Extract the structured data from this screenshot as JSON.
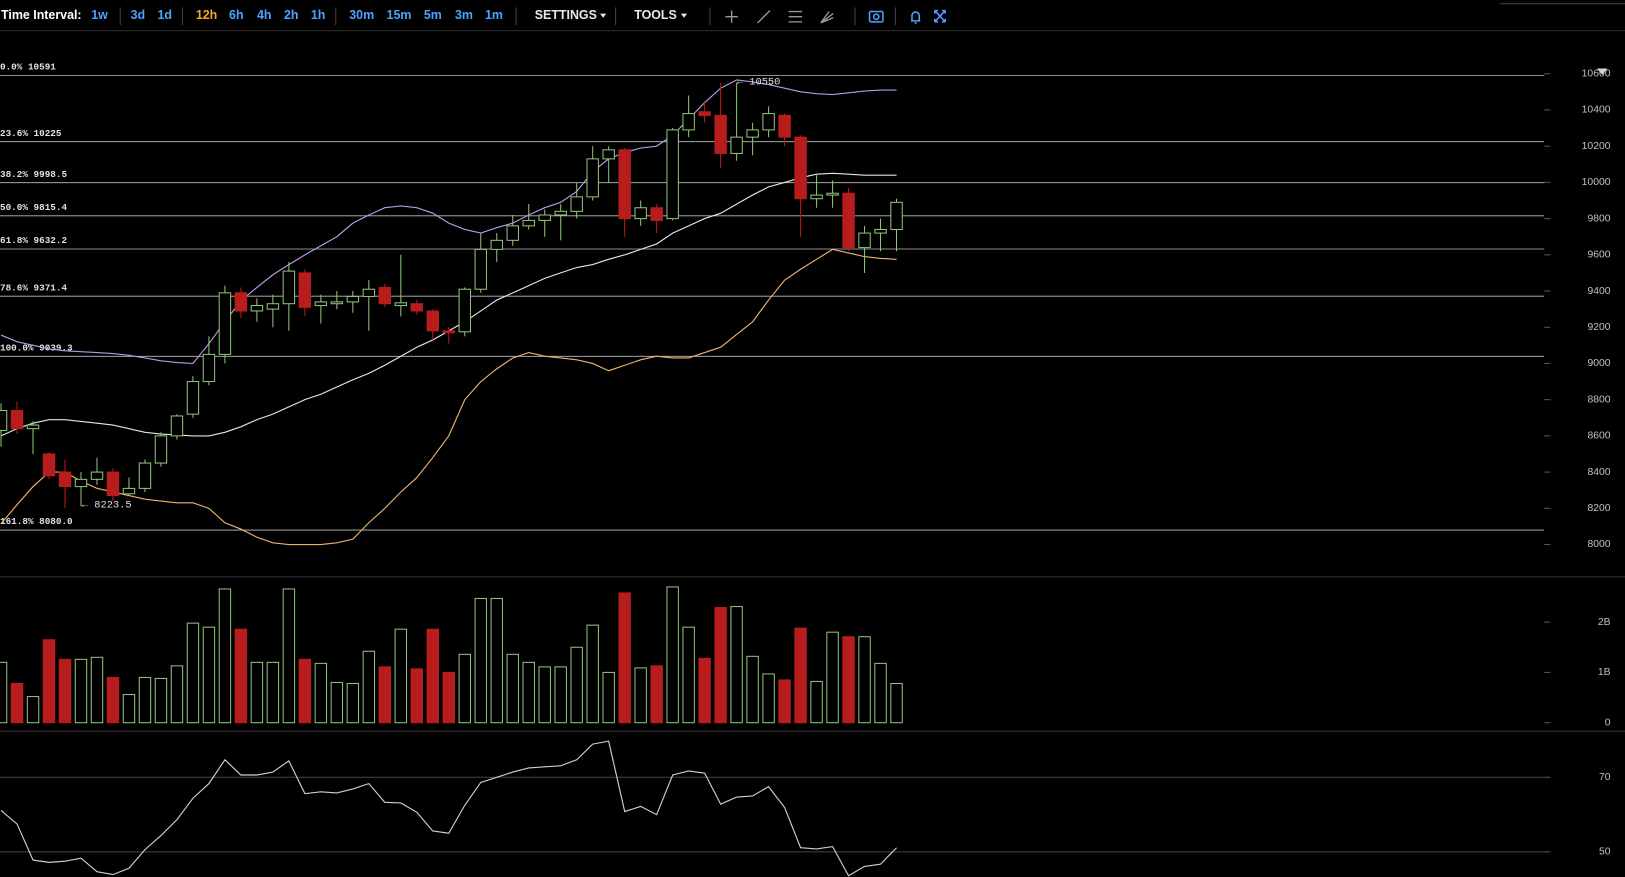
{
  "toolbar": {
    "label": "Time Interval:",
    "intervals": [
      "1w",
      "3d",
      "1d",
      "12h",
      "6h",
      "4h",
      "2h",
      "1h",
      "30m",
      "15m",
      "5m",
      "3m",
      "1m"
    ],
    "active": "12h",
    "menus": [
      "SETTINGS",
      "TOOLS"
    ]
  },
  "chart_data": [
    {
      "type": "candlestick",
      "up_color": "#8fc47a",
      "down_color": "#b81d1d",
      "open": [
        8630,
        8740,
        8640,
        8500,
        8400,
        8320,
        8360,
        8400,
        8280,
        8310,
        8450,
        8600,
        8720,
        8900,
        9050,
        9390,
        9290,
        9300,
        9330,
        9500,
        9320,
        9330,
        9340,
        9370,
        9420,
        9320,
        9330,
        9290,
        9180,
        9175,
        9410,
        9630,
        9680,
        9760,
        9790,
        9820,
        9840,
        9920,
        10130,
        10180,
        9800,
        9860,
        9800,
        10290,
        10390,
        10370,
        10160,
        10250,
        10290,
        10370,
        10250,
        9910,
        9930,
        9940,
        9640,
        9720,
        9740
      ],
      "high": [
        8780,
        8790,
        8680,
        8510,
        8470,
        8400,
        8480,
        8420,
        8370,
        8470,
        8620,
        8720,
        8930,
        9150,
        9430,
        9420,
        9360,
        9380,
        9560,
        9520,
        9380,
        9400,
        9400,
        9460,
        9440,
        9600,
        9350,
        9300,
        9200,
        9420,
        9720,
        9720,
        9820,
        9880,
        9850,
        9880,
        10000,
        10200,
        10200,
        10190,
        9900,
        9880,
        10300,
        10480,
        10450,
        10550,
        10550,
        10330,
        10420,
        10380,
        10260,
        10040,
        10010,
        9970,
        9760,
        9800,
        9910
      ],
      "low": [
        8540,
        8610,
        8500,
        8360,
        8200,
        8210,
        8330,
        8240,
        8270,
        8290,
        8430,
        8580,
        8700,
        8880,
        9000,
        9250,
        9230,
        9200,
        9180,
        9260,
        9220,
        9300,
        9280,
        9180,
        9310,
        9260,
        9270,
        9130,
        9110,
        9150,
        9390,
        9560,
        9650,
        9740,
        9700,
        9680,
        9800,
        9900,
        10000,
        9700,
        9760,
        9720,
        9790,
        10250,
        10330,
        10080,
        10120,
        10150,
        10250,
        10200,
        9700,
        9860,
        9860,
        9620,
        9500,
        9620,
        9620
      ],
      "close": [
        8740,
        8640,
        8660,
        8380,
        8320,
        8360,
        8400,
        8270,
        8310,
        8450,
        8600,
        8710,
        8900,
        9050,
        9390,
        9290,
        9320,
        9330,
        9510,
        9310,
        9340,
        9340,
        9370,
        9410,
        9330,
        9335,
        9290,
        9180,
        9170,
        9410,
        9630,
        9680,
        9760,
        9790,
        9820,
        9840,
        9920,
        10130,
        10180,
        9800,
        9860,
        9790,
        10290,
        10380,
        10370,
        10160,
        10250,
        10290,
        10380,
        10250,
        9910,
        9930,
        9940,
        9640,
        9720,
        9740,
        9890
      ],
      "bands": [
        {
          "color": "#b79be8",
          "values": [
            9157,
            9120,
            9100,
            9080,
            9070,
            9065,
            9060,
            9055,
            9045,
            9030,
            9015,
            9005,
            9000,
            9110,
            9230,
            9346,
            9420,
            9490,
            9546,
            9600,
            9650,
            9700,
            9775,
            9820,
            9860,
            9870,
            9860,
            9830,
            9775,
            9740,
            9720,
            9750,
            9775,
            9820,
            9860,
            9890,
            9950,
            10060,
            10130,
            10165,
            10190,
            10200,
            10260,
            10350,
            10440,
            10520,
            10566,
            10555,
            10540,
            10520,
            10500,
            10490,
            10485,
            10495,
            10505,
            10510,
            10510
          ]
        },
        {
          "color": "#e6e6f0",
          "values": [
            8600,
            8640,
            8670,
            8690,
            8690,
            8680,
            8670,
            8660,
            8640,
            8620,
            8610,
            8605,
            8600,
            8600,
            8620,
            8650,
            8690,
            8720,
            8760,
            8800,
            8830,
            8870,
            8910,
            8945,
            8990,
            9040,
            9090,
            9130,
            9180,
            9230,
            9290,
            9350,
            9390,
            9430,
            9470,
            9500,
            9530,
            9546,
            9575,
            9600,
            9630,
            9660,
            9720,
            9760,
            9800,
            9830,
            9880,
            9930,
            9975,
            10000,
            10025,
            10045,
            10050,
            10045,
            10040,
            10040,
            10040
          ]
        },
        {
          "color": "#efb26e",
          "values": [
            8115,
            8220,
            8320,
            8400,
            8400,
            8350,
            8310,
            8290,
            8270,
            8250,
            8240,
            8230,
            8230,
            8200,
            8120,
            8085,
            8040,
            8010,
            8000,
            8000,
            8000,
            8010,
            8030,
            8120,
            8200,
            8290,
            8370,
            8480,
            8600,
            8800,
            8900,
            8970,
            9030,
            9060,
            9040,
            9030,
            9020,
            9000,
            8960,
            8990,
            9020,
            9040,
            9030,
            9030,
            9060,
            9090,
            9160,
            9230,
            9350,
            9460,
            9520,
            9575,
            9630,
            9610,
            9590,
            9580,
            9575
          ]
        }
      ],
      "levels": [
        {
          "label": "0.0% 10591",
          "value": 10591
        },
        {
          "label": "23.6% 10225",
          "value": 10225
        },
        {
          "label": "38.2% 9998.5",
          "value": 9998.5
        },
        {
          "label": "50.0% 9815.4",
          "value": 9815.4
        },
        {
          "label": "61.8% 9632.2",
          "value": 9632.2
        },
        {
          "label": "78.6% 9371.4",
          "value": 9371.4
        },
        {
          "label": "100.0% 9039.3",
          "value": 9039.3
        },
        {
          "label": "161.8% 8080.0",
          "value": 8080
        }
      ],
      "annotations": [
        "← 10550",
        "← 8223.5"
      ],
      "ylim": [
        7830,
        10835
      ],
      "yticks": [
        8000,
        8200,
        8400,
        8600,
        8800,
        9000,
        9200,
        9400,
        9600,
        9800,
        10000,
        10200,
        10400,
        10600
      ]
    },
    {
      "type": "bar",
      "up_color": "#8fc47a",
      "down_color": "#b81d1d",
      "values": [
        1.2,
        0.78,
        0.52,
        1.65,
        1.26,
        1.26,
        1.3,
        0.9,
        0.56,
        0.9,
        0.88,
        1.13,
        1.98,
        1.9,
        2.66,
        1.86,
        1.2,
        1.2,
        2.66,
        1.26,
        1.18,
        0.8,
        0.78,
        1.42,
        1.11,
        1.86,
        1.07,
        1.86,
        1.0,
        1.36,
        2.47,
        2.47,
        1.36,
        1.2,
        1.11,
        1.11,
        1.5,
        1.94,
        1.0,
        2.58,
        1.09,
        1.13,
        2.7,
        1.9,
        1.28,
        2.29,
        2.31,
        1.32,
        0.97,
        0.85,
        1.88,
        0.82,
        1.8,
        1.71,
        1.71,
        1.18,
        0.78
      ],
      "ylim": [
        -0.16,
        2.89
      ],
      "yticks": [
        0,
        {
          "value": 1,
          "label": "1B"
        },
        {
          "value": 2,
          "label": "2B"
        }
      ]
    },
    {
      "type": "line",
      "color": "#c9d0de",
      "values": [
        61.1,
        57.5,
        47.8,
        47.2,
        47.5,
        48.3,
        44.7,
        43.9,
        45.6,
        50.6,
        54.4,
        58.6,
        64.4,
        68.3,
        74.7,
        70.6,
        70.6,
        71.4,
        74.4,
        65.6,
        66.1,
        65.8,
        66.9,
        68.3,
        63.3,
        63.1,
        60.6,
        55.6,
        55,
        62.5,
        68.6,
        70,
        71.4,
        72.5,
        72.8,
        73.1,
        74.7,
        78.9,
        79.7,
        60.8,
        62.2,
        60,
        70.6,
        71.7,
        71.1,
        62.8,
        64.7,
        65,
        67.5,
        61.9,
        51.1,
        50.8,
        51.4,
        43.6,
        46.1,
        46.7,
        51.1
      ],
      "ylim": [
        43.3,
        82.2
      ],
      "yticks": [
        50,
        70
      ],
      "grid": true
    }
  ]
}
